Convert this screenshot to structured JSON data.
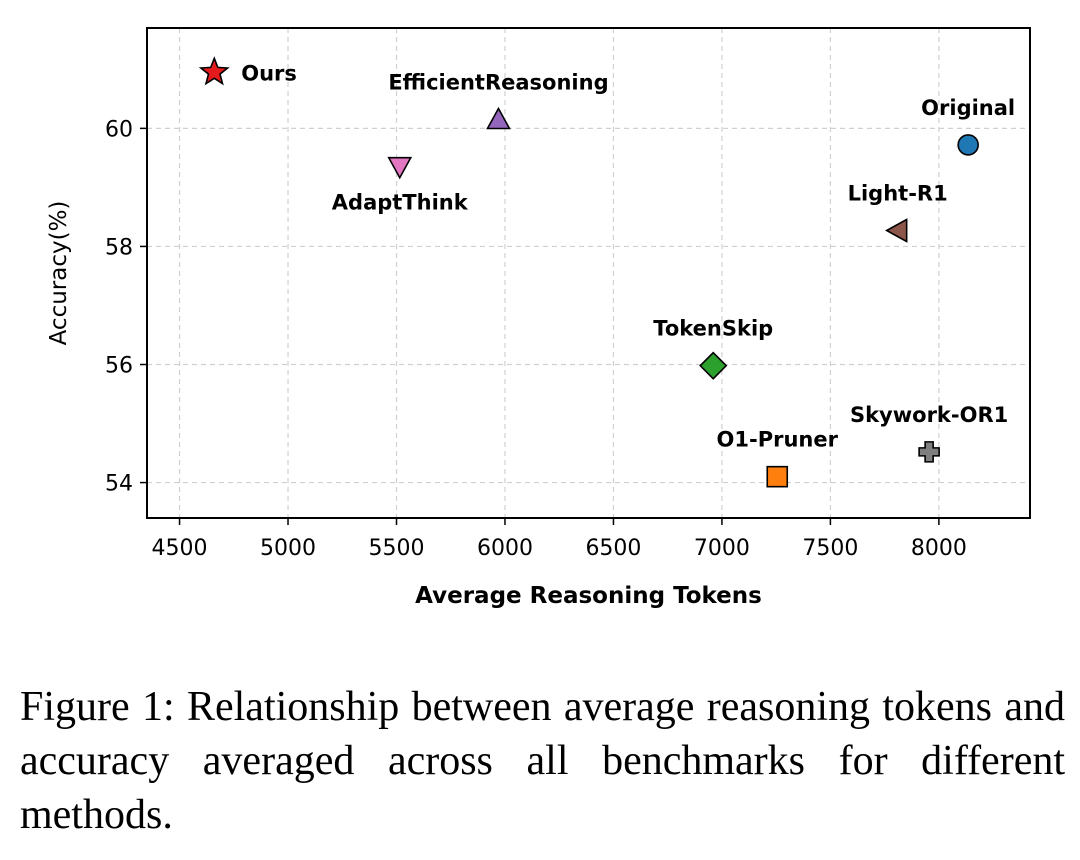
{
  "chart_data": {
    "type": "scatter",
    "title": "",
    "xlabel": "Average Reasoning Tokens",
    "ylabel": "Accuracy(%)",
    "xlim": [
      4350,
      8420
    ],
    "ylim": [
      53.4,
      61.7
    ],
    "xticks": [
      4500,
      5000,
      5500,
      6000,
      6500,
      7000,
      7500,
      8000
    ],
    "yticks": [
      54,
      56,
      58,
      60
    ],
    "grid": true,
    "points": [
      {
        "name": "Ours",
        "x": 4660,
        "y": 60.95,
        "marker": "star",
        "color": "#e41a1c",
        "label_color": "#e41a1c",
        "label_pos": "right"
      },
      {
        "name": "EfficientReasoning",
        "x": 5970,
        "y": 60.15,
        "marker": "triangle-up",
        "color": "#9467bd",
        "label_color": "#000000",
        "label_pos": "top"
      },
      {
        "name": "AdaptThink",
        "x": 5515,
        "y": 59.35,
        "marker": "triangle-down",
        "color": "#e377c2",
        "label_color": "#000000",
        "label_pos": "bottom"
      },
      {
        "name": "Original",
        "x": 8135,
        "y": 59.72,
        "marker": "circle",
        "color": "#1f77b4",
        "label_color": "#000000",
        "label_pos": "top"
      },
      {
        "name": "Light-R1",
        "x": 7810,
        "y": 58.27,
        "marker": "triangle-left",
        "color": "#8c564b",
        "label_color": "#000000",
        "label_pos": "top"
      },
      {
        "name": "TokenSkip",
        "x": 6960,
        "y": 55.98,
        "marker": "diamond",
        "color": "#2ca02c",
        "label_color": "#000000",
        "label_pos": "top"
      },
      {
        "name": "Skywork-OR1",
        "x": 7955,
        "y": 54.52,
        "marker": "plus",
        "color": "#7f7f7f",
        "label_color": "#000000",
        "label_pos": "top"
      },
      {
        "name": "O1-Pruner",
        "x": 7255,
        "y": 54.1,
        "marker": "square",
        "color": "#ff7f0e",
        "label_color": "#000000",
        "label_pos": "top"
      }
    ]
  },
  "caption": {
    "text": "Figure 1: Relationship between average reasoning tokens and accuracy averaged across all benchmarks for different methods."
  }
}
